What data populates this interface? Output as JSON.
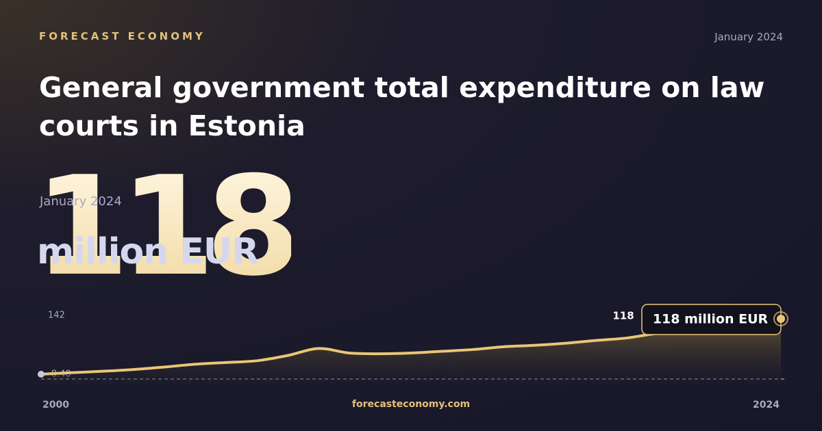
{
  "header": {
    "brand": "FORECAST ECONOMY",
    "date": "January 2024",
    "title": "General government total expenditure on law courts in Estonia"
  },
  "headline": {
    "value": "118",
    "date": "January 2024",
    "unit": "million EUR"
  },
  "chart_data": {
    "type": "area",
    "x": [
      2000,
      2001,
      2002,
      2003,
      2004,
      2005,
      2006,
      2007,
      2008,
      2009,
      2010,
      2011,
      2012,
      2013,
      2014,
      2015,
      2016,
      2017,
      2018,
      2019,
      2020,
      2021,
      2022,
      2023,
      2024
    ],
    "values": [
      -8.48,
      -4,
      0,
      5,
      12,
      20,
      25,
      30,
      45,
      65,
      52,
      50,
      52,
      57,
      62,
      70,
      74,
      80,
      88,
      95,
      108,
      110,
      109,
      113,
      118
    ],
    "color": "#e9c677",
    "xlim": [
      2000,
      2024
    ],
    "xticks": [
      2000,
      2024
    ],
    "ylim": [
      -8.48,
      142
    ],
    "yticks": [
      142,
      -8.48
    ],
    "end_label": "118",
    "callout_label": "118 million EUR"
  },
  "footer": {
    "site": "forecasteconomy.com"
  }
}
